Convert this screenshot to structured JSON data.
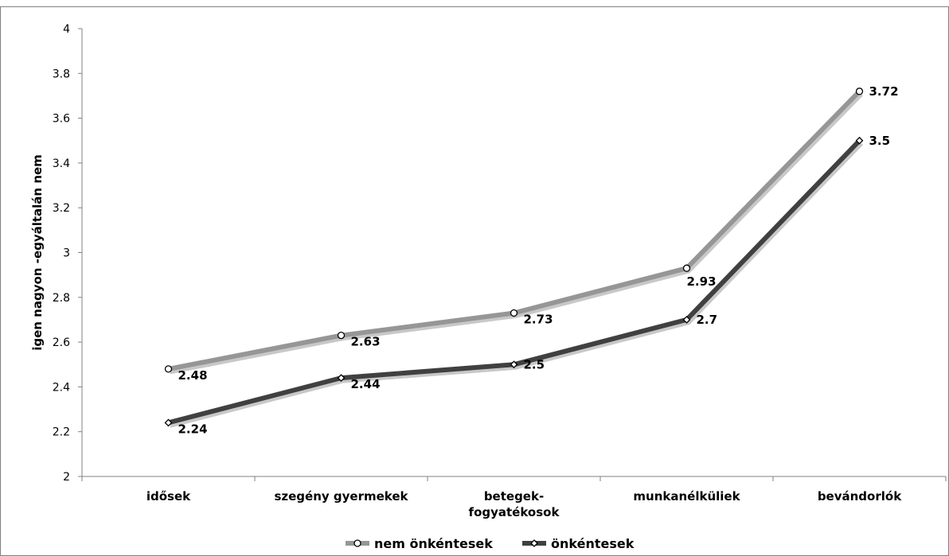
{
  "chart_data": {
    "type": "line",
    "ylabel": "igen nagyon -egyáltalán nem",
    "ylim": [
      2,
      4
    ],
    "yticks": [
      "2",
      "2.2",
      "2.4",
      "2.6",
      "2.8",
      "3",
      "3.2",
      "3.4",
      "3.6",
      "3.8",
      "4"
    ],
    "categories": [
      [
        "idősek"
      ],
      [
        "szegény gyermekek"
      ],
      [
        "betegek-",
        "fogyatékosok"
      ],
      [
        "munkanélküliek"
      ],
      [
        "bevándorlók"
      ]
    ],
    "series": [
      {
        "name": "nem önkéntesek",
        "values": [
          2.48,
          2.63,
          2.73,
          2.93,
          3.72
        ],
        "labels": [
          "2.48",
          "2.63",
          "2.73",
          "2.93",
          "3.72"
        ],
        "color": "#969696",
        "marker": "circle"
      },
      {
        "name": "önkéntesek",
        "values": [
          2.24,
          2.44,
          2.5,
          2.7,
          3.5
        ],
        "labels": [
          "2.24",
          "2.44",
          "2.5",
          "2.7",
          "3.5"
        ],
        "color": "#404040",
        "marker": "diamond"
      }
    ],
    "grid": false,
    "legend_position": "bottom"
  }
}
